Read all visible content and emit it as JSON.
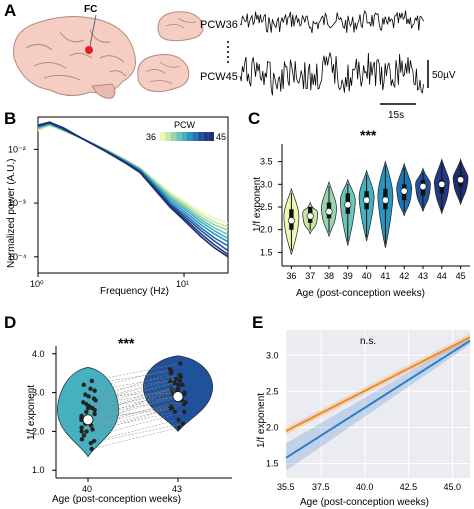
{
  "panel_letters": [
    "A",
    "B",
    "C",
    "D",
    "E"
  ],
  "panel_a": {
    "region_label": "FC",
    "traces": [
      {
        "label": "PCW36"
      },
      {
        "label": "PCW45"
      }
    ],
    "scale_amplitude": "50µV",
    "scale_time": "15s"
  },
  "chart_data": [
    {
      "type": "line",
      "panel": "B",
      "xlabel": "Frequency (Hz)",
      "ylabel": "Normalized power (A.U.)",
      "xscale": "log",
      "yscale": "log",
      "xlim": [
        1,
        20
      ],
      "ylim": [
        5e-05,
        0.04
      ],
      "x_ticks": [
        "10⁰",
        "10¹"
      ],
      "y_ticks": [
        "10⁻²",
        "10⁻³",
        "10⁻⁴"
      ],
      "colorbar": {
        "title": "PCW",
        "min_label": "36",
        "max_label": "45",
        "range": [
          36,
          45
        ]
      },
      "series": [
        {
          "name": "36",
          "color": "#f0f7b4",
          "x": [
            1,
            1.2,
            1.5,
            2,
            3,
            4,
            5,
            6,
            8,
            10,
            13,
            16,
            20
          ],
          "y": [
            0.022,
            0.028,
            0.022,
            0.016,
            0.0095,
            0.0065,
            0.0046,
            0.003,
            0.0016,
            0.0011,
            0.0007,
            0.00052,
            0.00042
          ]
        },
        {
          "name": "37",
          "color": "#c8e6a8",
          "x": [
            1,
            1.2,
            1.5,
            2,
            3,
            4,
            5,
            6,
            8,
            10,
            13,
            16,
            20
          ],
          "y": [
            0.023,
            0.028,
            0.022,
            0.016,
            0.0095,
            0.0063,
            0.0045,
            0.0029,
            0.0015,
            0.001,
            0.00062,
            0.00045,
            0.00036
          ]
        },
        {
          "name": "38",
          "color": "#98d4b0",
          "x": [
            1,
            1.2,
            1.5,
            2,
            3,
            4,
            5,
            6,
            8,
            10,
            13,
            16,
            20
          ],
          "y": [
            0.024,
            0.029,
            0.023,
            0.016,
            0.0094,
            0.0062,
            0.0044,
            0.0028,
            0.0014,
            0.00092,
            0.00055,
            0.0004,
            0.00031
          ]
        },
        {
          "name": "39",
          "color": "#6cc4b9",
          "x": [
            1,
            1.2,
            1.5,
            2,
            3,
            4,
            5,
            6,
            8,
            10,
            13,
            16,
            20
          ],
          "y": [
            0.025,
            0.029,
            0.023,
            0.016,
            0.0093,
            0.0061,
            0.0043,
            0.0027,
            0.0013,
            0.00085,
            0.0005,
            0.00035,
            0.00026
          ]
        },
        {
          "name": "40",
          "color": "#45b0c0",
          "x": [
            1,
            1.2,
            1.5,
            2,
            3,
            4,
            5,
            6,
            8,
            10,
            13,
            16,
            20
          ],
          "y": [
            0.026,
            0.03,
            0.023,
            0.016,
            0.0092,
            0.006,
            0.0042,
            0.0026,
            0.0012,
            0.00078,
            0.00045,
            0.00031,
            0.00022
          ]
        },
        {
          "name": "41",
          "color": "#2a95be",
          "x": [
            1,
            1.2,
            1.5,
            2,
            3,
            4,
            5,
            6,
            8,
            10,
            13,
            16,
            20
          ],
          "y": [
            0.026,
            0.03,
            0.023,
            0.016,
            0.0091,
            0.0059,
            0.0041,
            0.0025,
            0.0011,
            0.0007,
            0.0004,
            0.00027,
            0.00019
          ]
        },
        {
          "name": "42",
          "color": "#1f73b2",
          "x": [
            1,
            1.2,
            1.5,
            2,
            3,
            4,
            5,
            6,
            8,
            10,
            13,
            16,
            20
          ],
          "y": [
            0.027,
            0.031,
            0.024,
            0.016,
            0.009,
            0.0058,
            0.004,
            0.0024,
            0.001,
            0.00063,
            0.00035,
            0.00023,
            0.00016
          ]
        },
        {
          "name": "43",
          "color": "#20529b",
          "x": [
            1,
            1.2,
            1.5,
            2,
            3,
            4,
            5,
            6,
            8,
            10,
            13,
            16,
            20
          ],
          "y": [
            0.027,
            0.031,
            0.024,
            0.016,
            0.0089,
            0.0057,
            0.0039,
            0.0023,
            0.00095,
            0.00057,
            0.00031,
            0.0002,
            0.00013
          ]
        },
        {
          "name": "44",
          "color": "#223a86",
          "x": [
            1,
            1.2,
            1.5,
            2,
            3,
            4,
            5,
            6,
            8,
            10,
            13,
            16,
            20
          ],
          "y": [
            0.028,
            0.032,
            0.024,
            0.016,
            0.0088,
            0.0056,
            0.0038,
            0.0022,
            0.0009,
            0.00052,
            0.00027,
            0.00017,
            0.00011
          ]
        },
        {
          "name": "45",
          "color": "#1c2f6e",
          "x": [
            1,
            1.2,
            1.5,
            2,
            3,
            4,
            5,
            6,
            8,
            10,
            13,
            16,
            20
          ],
          "y": [
            0.028,
            0.032,
            0.025,
            0.016,
            0.0087,
            0.0055,
            0.0037,
            0.0021,
            0.00085,
            0.00048,
            0.00024,
            0.00015,
            0.0001
          ]
        }
      ]
    },
    {
      "type": "violin",
      "panel": "C",
      "significance": "***",
      "xlabel": "Age (post-conception weeks)",
      "ylabel": "1/f exponent",
      "ylim": [
        1.2,
        3.8
      ],
      "yticks": [
        "1.5",
        "2.0",
        "2.5",
        "3.0",
        "3.5"
      ],
      "categories": [
        "36",
        "37",
        "38",
        "39",
        "40",
        "41",
        "42",
        "43",
        "44",
        "45"
      ],
      "medians": [
        2.2,
        2.3,
        2.4,
        2.55,
        2.65,
        2.65,
        2.85,
        2.95,
        3.0,
        3.1
      ],
      "q1": [
        2.0,
        2.15,
        2.25,
        2.35,
        2.45,
        2.45,
        2.65,
        2.75,
        2.8,
        2.95
      ],
      "q3": [
        2.45,
        2.5,
        2.6,
        2.8,
        2.85,
        2.9,
        3.0,
        3.1,
        3.1,
        3.2
      ],
      "mins": [
        1.45,
        1.9,
        1.85,
        1.65,
        1.75,
        1.6,
        2.3,
        2.4,
        2.35,
        2.55
      ],
      "maxs": [
        2.9,
        2.6,
        3.05,
        3.1,
        3.3,
        3.5,
        3.45,
        3.35,
        3.55,
        3.55
      ],
      "colors": [
        "#f0f7b4",
        "#c8e6a8",
        "#98d4b0",
        "#6cc4b9",
        "#45b0c0",
        "#2a95be",
        "#1f73b2",
        "#20529b",
        "#223a86",
        "#1c2f6e"
      ]
    },
    {
      "type": "violin",
      "panel": "D",
      "significance": "***",
      "xlabel": "Age (post-conception weeks)",
      "ylabel": "1/f exponent",
      "ylim": [
        0.8,
        4.2
      ],
      "yticks": [
        "1.0",
        "2.0",
        "3.0",
        "4.0"
      ],
      "categories": [
        "40",
        "43"
      ],
      "means": [
        2.3,
        2.9
      ],
      "colors": [
        "#45b0c0",
        "#20529b"
      ],
      "paired_values": [
        [
          1.55,
          2.1
        ],
        [
          1.75,
          2.3
        ],
        [
          1.8,
          2.5
        ],
        [
          1.9,
          2.6
        ],
        [
          2.0,
          2.5
        ],
        [
          2.05,
          2.7
        ],
        [
          2.1,
          2.8
        ],
        [
          2.15,
          2.65
        ],
        [
          2.2,
          2.9
        ],
        [
          2.25,
          2.75
        ],
        [
          2.3,
          3.0
        ],
        [
          2.35,
          2.85
        ],
        [
          2.4,
          3.1
        ],
        [
          2.45,
          2.95
        ],
        [
          2.5,
          3.2
        ],
        [
          2.55,
          3.05
        ],
        [
          2.6,
          3.3
        ],
        [
          2.65,
          3.1
        ],
        [
          2.7,
          3.25
        ],
        [
          2.75,
          3.4
        ],
        [
          2.8,
          3.3
        ],
        [
          2.85,
          3.5
        ],
        [
          2.95,
          3.35
        ],
        [
          3.05,
          3.45
        ],
        [
          3.1,
          3.6
        ],
        [
          3.2,
          3.55
        ],
        [
          3.3,
          3.75
        ],
        [
          2.0,
          3.2
        ],
        [
          2.3,
          2.6
        ],
        [
          2.6,
          2.9
        ],
        [
          2.9,
          3.0
        ],
        [
          1.7,
          2.2
        ]
      ]
    },
    {
      "type": "line",
      "panel": "E",
      "annotation": "n.s.",
      "xlabel": "Age (post-conception weeks)",
      "ylabel": "1/f exponent",
      "xlim": [
        35.5,
        46
      ],
      "ylim": [
        1.3,
        3.35
      ],
      "xticks": [
        "35.5",
        "37.5",
        "40.0",
        "42.5",
        "45.0"
      ],
      "yticks": [
        "1.5",
        "2.0",
        "2.5",
        "3.0"
      ],
      "series": [
        {
          "color": "#f08c28",
          "x": [
            35.5,
            46
          ],
          "y": [
            1.95,
            3.25
          ],
          "ci_lower": [
            1.9,
            3.2
          ],
          "ci_upper": [
            2.0,
            3.3
          ]
        },
        {
          "color": "#2f7dc4",
          "x": [
            35.5,
            46
          ],
          "y": [
            1.58,
            3.2
          ],
          "ci_lower": [
            1.4,
            3.15
          ],
          "ci_upper": [
            1.78,
            3.26
          ]
        }
      ]
    }
  ]
}
